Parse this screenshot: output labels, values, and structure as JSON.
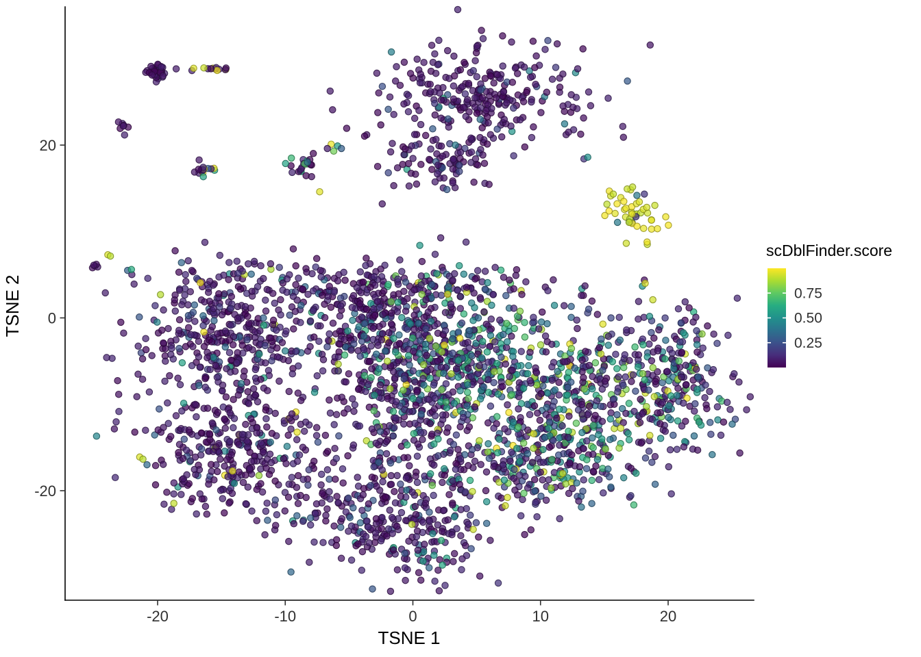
{
  "chart_data": {
    "type": "scatter",
    "title": "",
    "xlabel": "TSNE 1",
    "ylabel": "TSNE 2",
    "color_label": "scDblFinder.score",
    "xlim": [
      -27,
      26.7
    ],
    "ylim": [
      -32.5,
      36
    ],
    "x_ticks": [
      -20,
      -10,
      0,
      10,
      20
    ],
    "x_tick_labels": [
      "-20",
      "-10",
      "0",
      "10",
      "20"
    ],
    "y_ticks": [
      -20,
      0,
      20
    ],
    "y_tick_labels": [
      "-20",
      "0",
      "20"
    ],
    "grid": false,
    "legend_position": "right",
    "legend": {
      "title": "scDblFinder.score",
      "tick_values": [
        0.75,
        0.5,
        0.25
      ],
      "tick_labels": [
        "0.75",
        "0.50",
        "0.25"
      ],
      "range": [
        0,
        1
      ]
    },
    "point_style": {
      "radius": 4.7,
      "fill_opacity": 0.72,
      "stroke_darken": 0.62,
      "stroke_width": 1.1,
      "stroke_opacity": 0.85
    },
    "colormap": {
      "name": "viridis",
      "stops": [
        [
          0,
          "#440154"
        ],
        [
          0.125,
          "#472d7b"
        ],
        [
          0.25,
          "#3b528b"
        ],
        [
          0.375,
          "#2c728e"
        ],
        [
          0.5,
          "#21918c"
        ],
        [
          0.625,
          "#27ad81"
        ],
        [
          0.75,
          "#5ec962"
        ],
        [
          0.875,
          "#aadc32"
        ],
        [
          1,
          "#fde725"
        ]
      ]
    },
    "seed": 42,
    "clusters": [
      {
        "name": "top-left-knot",
        "cx": -20.1,
        "cy": 28.5,
        "sx": 0.35,
        "sy": 0.4,
        "n": 40,
        "score_mix": [
          [
            1,
            0.01,
            0.1
          ]
        ]
      },
      {
        "name": "top-left-streak",
        "cx": -16.5,
        "cy": 28.8,
        "sx": 1.1,
        "sy": 0.12,
        "n": 14,
        "score_mix": [
          [
            0.45,
            0.01,
            0.1
          ],
          [
            0.15,
            0.25,
            0.45
          ],
          [
            0.4,
            0.9,
            1
          ]
        ]
      },
      {
        "name": "left-small-22",
        "cx": -22.7,
        "cy": 22.1,
        "sx": 0.25,
        "sy": 0.45,
        "n": 7,
        "score_mix": [
          [
            1,
            0.01,
            0.1
          ]
        ]
      },
      {
        "name": "left-small-17",
        "cx": -16.2,
        "cy": 17.0,
        "sx": 0.45,
        "sy": 0.55,
        "n": 16,
        "score_mix": [
          [
            0.7,
            0.01,
            0.12
          ],
          [
            0.1,
            0.3,
            0.5
          ],
          [
            0.1,
            0.55,
            0.75
          ],
          [
            0.1,
            0.9,
            1
          ]
        ]
      },
      {
        "name": "mid-small-17",
        "cx": -8.7,
        "cy": 17.5,
        "sx": 0.55,
        "sy": 0.75,
        "n": 22,
        "score_mix": [
          [
            0.8,
            0.01,
            0.12
          ],
          [
            0.1,
            0.3,
            0.55
          ],
          [
            0.1,
            0.55,
            0.8
          ]
        ]
      },
      {
        "name": "top-cloud-main",
        "cx": 5.5,
        "cy": 26.1,
        "sx": 4.3,
        "sy": 2.9,
        "n": 270,
        "score_mix": [
          [
            0.9,
            0.01,
            0.1
          ],
          [
            0.08,
            0.12,
            0.3
          ],
          [
            0.02,
            0.35,
            0.6
          ]
        ]
      },
      {
        "name": "top-cloud-lower",
        "cx": 2.5,
        "cy": 18.2,
        "sx": 2.3,
        "sy": 1.6,
        "n": 90,
        "score_mix": [
          [
            0.9,
            0.01,
            0.1
          ],
          [
            0.08,
            0.12,
            0.3
          ],
          [
            0.02,
            0.35,
            0.6
          ]
        ]
      },
      {
        "name": "yellow-cluster",
        "cx": 17.2,
        "cy": 12.2,
        "sx": 1.4,
        "sy": 1.5,
        "n": 48,
        "score_mix": [
          [
            0.88,
            0.9,
            1
          ],
          [
            0.07,
            0.05,
            0.2
          ],
          [
            0.05,
            0.3,
            0.55
          ]
        ]
      },
      {
        "name": "bottom-left-top",
        "cx": -14.6,
        "cy": -2.0,
        "sx": 3.3,
        "sy": 3.8,
        "n": 360,
        "score_mix": [
          [
            0.82,
            0.01,
            0.12
          ],
          [
            0.12,
            0.13,
            0.35
          ],
          [
            0.04,
            0.4,
            0.65
          ],
          [
            0.02,
            0.85,
            1
          ]
        ]
      },
      {
        "name": "bottom-left-low",
        "cx": -14.1,
        "cy": -15.5,
        "sx": 3.6,
        "sy": 3.6,
        "n": 340,
        "score_mix": [
          [
            0.85,
            0.01,
            0.12
          ],
          [
            0.09,
            0.15,
            0.35
          ],
          [
            0.04,
            0.4,
            0.65
          ],
          [
            0.02,
            0.85,
            1
          ]
        ]
      },
      {
        "name": "bottom-center-top",
        "cx": -2.3,
        "cy": -0.4,
        "sx": 3.2,
        "sy": 3.2,
        "n": 260,
        "score_mix": [
          [
            0.72,
            0.01,
            0.12
          ],
          [
            0.14,
            0.15,
            0.38
          ],
          [
            0.1,
            0.4,
            0.68
          ],
          [
            0.04,
            0.7,
            1
          ]
        ]
      },
      {
        "name": "bottom-center",
        "cx": -0.7,
        "cy": -9.9,
        "sx": 3.4,
        "sy": 3.6,
        "n": 280,
        "score_mix": [
          [
            0.72,
            0.01,
            0.12
          ],
          [
            0.14,
            0.15,
            0.38
          ],
          [
            0.1,
            0.4,
            0.68
          ],
          [
            0.04,
            0.7,
            1
          ]
        ]
      },
      {
        "name": "bottom-center-low",
        "cx": -1.7,
        "cy": -22.6,
        "sx": 4.2,
        "sy": 3.2,
        "n": 300,
        "score_mix": [
          [
            0.82,
            0.01,
            0.12
          ],
          [
            0.12,
            0.13,
            0.35
          ],
          [
            0.04,
            0.4,
            0.65
          ],
          [
            0.02,
            0.85,
            1
          ]
        ]
      },
      {
        "name": "teal-zone",
        "cx": 4.2,
        "cy": -5.2,
        "sx": 3.2,
        "sy": 3.4,
        "n": 290,
        "score_mix": [
          [
            0.33,
            0.02,
            0.14
          ],
          [
            0.22,
            0.18,
            0.4
          ],
          [
            0.28,
            0.42,
            0.68
          ],
          [
            0.17,
            0.7,
            1
          ]
        ]
      },
      {
        "name": "bottom-right",
        "cx": 12.8,
        "cy": -8.8,
        "sx": 3.8,
        "sy": 4.2,
        "n": 380,
        "score_mix": [
          [
            0.45,
            0.01,
            0.13
          ],
          [
            0.18,
            0.16,
            0.4
          ],
          [
            0.22,
            0.42,
            0.7
          ],
          [
            0.15,
            0.72,
            1
          ]
        ]
      },
      {
        "name": "bottom-far-right",
        "cx": 20.5,
        "cy": -7.2,
        "sx": 2.6,
        "sy": 4.0,
        "n": 230,
        "score_mix": [
          [
            0.55,
            0.01,
            0.13
          ],
          [
            0.18,
            0.16,
            0.4
          ],
          [
            0.17,
            0.42,
            0.7
          ],
          [
            0.1,
            0.72,
            1
          ]
        ]
      },
      {
        "name": "bottom-right-low",
        "cx": 10.1,
        "cy": -17.1,
        "sx": 3.8,
        "sy": 2.8,
        "n": 220,
        "score_mix": [
          [
            0.55,
            0.01,
            0.13
          ],
          [
            0.15,
            0.16,
            0.4
          ],
          [
            0.18,
            0.42,
            0.7
          ],
          [
            0.12,
            0.72,
            1
          ]
        ]
      },
      {
        "name": "top-arm",
        "cx": 2.0,
        "cy": 3.5,
        "sx": 4.5,
        "sy": 1.7,
        "n": 120,
        "score_mix": [
          [
            0.72,
            0.01,
            0.12
          ],
          [
            0.14,
            0.15,
            0.38
          ],
          [
            0.1,
            0.4,
            0.68
          ],
          [
            0.04,
            0.7,
            1
          ]
        ]
      },
      {
        "name": "top-left-arm",
        "cx": -8.2,
        "cy": 3.9,
        "sx": 4.5,
        "sy": 1.6,
        "n": 80,
        "score_mix": [
          [
            0.82,
            0.01,
            0.12
          ],
          [
            0.12,
            0.13,
            0.35
          ],
          [
            0.04,
            0.4,
            0.65
          ],
          [
            0.02,
            0.85,
            1
          ]
        ]
      },
      {
        "name": "bottom-tail",
        "cx": 0.8,
        "cy": -28.0,
        "sx": 1.3,
        "sy": 1.5,
        "n": 30,
        "score_mix": [
          [
            0.75,
            0.01,
            0.12
          ],
          [
            0.05,
            0.2,
            0.35
          ],
          [
            0.2,
            0.45,
            0.65
          ]
        ]
      }
    ],
    "outliers": [
      [
        -6.4,
        20.1,
        0.97
      ],
      [
        -5.9,
        19.9,
        0.55
      ],
      [
        -6.2,
        19.3,
        0.78
      ],
      [
        -5.6,
        19.6,
        0.3
      ],
      [
        -6.7,
        19.6,
        0.08
      ],
      [
        -7.3,
        14.6,
        0.96
      ],
      [
        18.2,
        4.0,
        0.96
      ],
      [
        18.8,
        2.1,
        0.93
      ],
      [
        13.4,
        18.4,
        0.15
      ],
      [
        13.7,
        18.6,
        0.5
      ],
      [
        -24.9,
        6.0,
        0.05
      ],
      [
        -25.1,
        5.8,
        0.04
      ],
      [
        -24.7,
        5.9,
        0.07
      ],
      [
        -24.8,
        6.2,
        0.05
      ],
      [
        -25.0,
        6.1,
        0.06
      ],
      [
        -23.9,
        7.3,
        0.95
      ],
      [
        -23.7,
        7.15,
        0.9
      ],
      [
        -22.35,
        5.5,
        0.3
      ],
      [
        -22.05,
        5.6,
        0.62
      ],
      [
        11.0,
        4.4,
        0.05
      ],
      [
        13.2,
        2.6,
        0.07
      ],
      [
        -21.4,
        -16.1,
        0.95
      ],
      [
        -21.15,
        -16.35,
        0.9
      ],
      [
        8.2,
        -20.5,
        0.05
      ],
      [
        8.7,
        -20.3,
        0.75
      ],
      [
        -1.5,
        15.3,
        0.05
      ],
      [
        -2.4,
        13.2,
        0.06
      ],
      [
        16.5,
        20.9,
        0.05
      ],
      [
        12.2,
        21.5,
        0.06
      ]
    ]
  }
}
